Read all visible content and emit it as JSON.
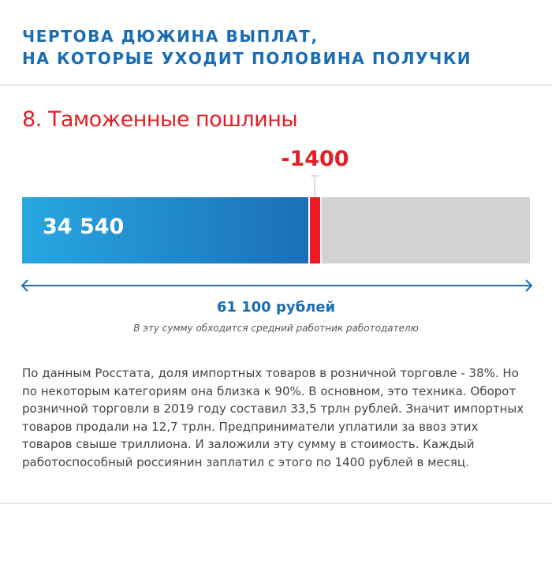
{
  "header": {
    "title_line1": "ЧЕРТОВА ДЮЖИНА ВЫПЛАТ,",
    "title_line2": "НА КОТОРЫЕ УХОДИТ ПОЛОВИНА ПОЛУЧКИ"
  },
  "section": {
    "heading": "8. Таможенные пошлины"
  },
  "chart_data": {
    "type": "bar",
    "orientation": "horizontal-stacked",
    "total": 61100,
    "segments": [
      {
        "value": 34540,
        "label": "34 540",
        "color": "#1e88cc"
      },
      {
        "value": 1400,
        "label": "-1400",
        "color": "#ed1c24"
      },
      {
        "value": 25160,
        "label": "",
        "color": "#d1d2d4"
      }
    ],
    "total_label": "61 100 рублей",
    "caption": "В эту сумму обходится средний работник работодателю"
  },
  "body_text": "По данным Росстата, доля импортных товаров в розничной торговле - 38%. Но по некоторым категориям она близка к 90%. В основном, это техника. Оборот розничной торговли в 2019 году составил 33,5 трлн рублей. Значит импортных товаров продали на 12,7 трлн. Предприниматели уплатили за ввоз этих товаров свыше триллиона. И заложили эту сумму в стоимость. Каждый работоспособный россиянин заплатил с этого по 1400 рублей в месяц."
}
